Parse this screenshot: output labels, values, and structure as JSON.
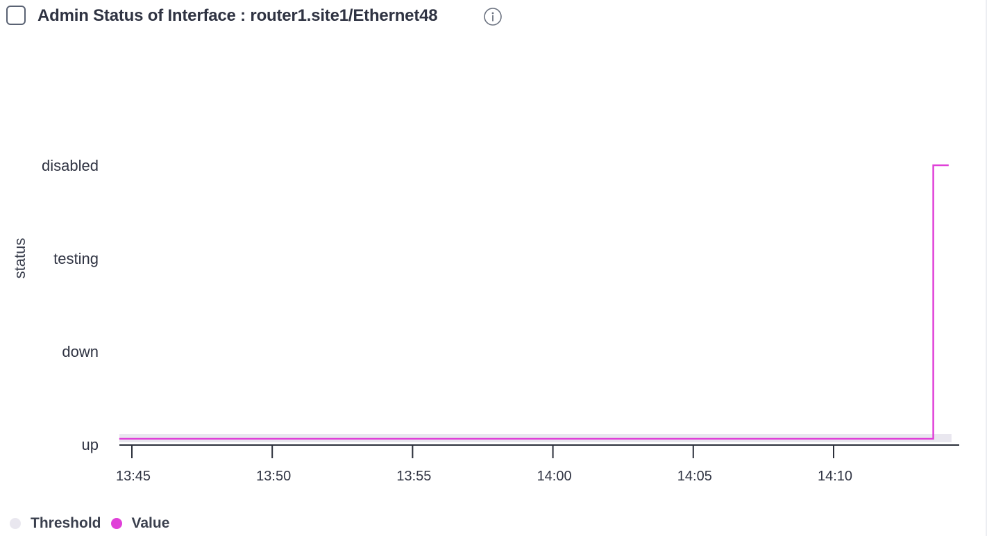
{
  "panel": {
    "title": "Admin Status of Interface : router1.site1/Ethernet48",
    "info_icon": "info-icon",
    "checkbox_icon": "checkbox-icon"
  },
  "chart_data": {
    "type": "line",
    "title": "Admin Status of Interface : router1.site1/Ethernet48",
    "xlabel": "",
    "ylabel": "status",
    "y_categories": [
      "up",
      "down",
      "testing",
      "disabled"
    ],
    "x_ticks": [
      "13:45",
      "13:50",
      "13:55",
      "14:00",
      "14:05",
      "14:10"
    ],
    "x_range_minutes": [
      "13:44.6",
      "14:14.2"
    ],
    "x_range": [
      44.55,
      74.2
    ],
    "series": [
      {
        "name": "Value",
        "color": "#e040d8",
        "step": true,
        "points": [
          {
            "t": 44.55,
            "status": "up"
          },
          {
            "t": 73.55,
            "status": "up"
          },
          {
            "t": 73.55,
            "status": "disabled"
          },
          {
            "t": 74.1,
            "status": "disabled"
          }
        ]
      },
      {
        "name": "Threshold",
        "color": "#e9e7ef",
        "points": [
          {
            "t": 44.55,
            "status": "up"
          },
          {
            "t": 74.2,
            "status": "up"
          }
        ]
      }
    ],
    "legend": "bottom-left"
  },
  "legend": {
    "items": [
      {
        "label": "Threshold",
        "color": "#e9e7ef"
      },
      {
        "label": "Value",
        "color": "#e040d8"
      }
    ]
  }
}
